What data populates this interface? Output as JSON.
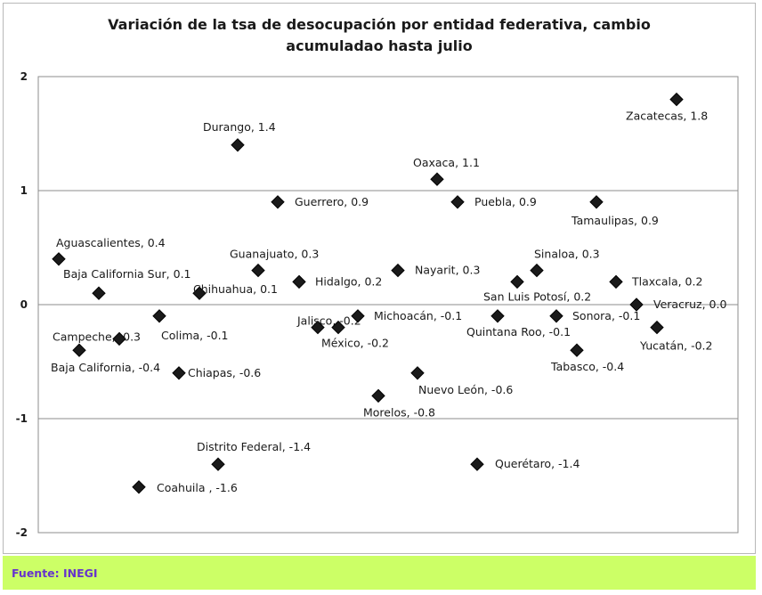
{
  "chart_data": {
    "type": "scatter",
    "title": "Variación de la tsa de desocupación por  entidad federativa, cambio acumuladao hasta julio",
    "title_lines": [
      "Variación de la tsa de desocupación por  entidad federativa, cambio",
      "acumuladao hasta julio"
    ],
    "ylim": [
      -2,
      2
    ],
    "yticks": [
      "2",
      "1",
      "0",
      "-1",
      "-2"
    ],
    "grid": "horizontal",
    "marker": "diamond",
    "marker_color": "#1a1a1a",
    "points": [
      {
        "label": "Aguascalientes, 0.4",
        "y": 0.4
      },
      {
        "label": "Baja California Sur, 0.1",
        "y": 0.1
      },
      {
        "label": "Campeche, -0.3",
        "y": -0.3
      },
      {
        "label": "Baja California, -0.4",
        "y": -0.4
      },
      {
        "label": "Coahuila , -1.6",
        "y": -1.6
      },
      {
        "label": "Colima, -0.1",
        "y": -0.1
      },
      {
        "label": "Chiapas, -0.6",
        "y": -0.6
      },
      {
        "label": "Chihuahua, 0.1",
        "y": 0.1
      },
      {
        "label": "Distrito Federal, -1.4",
        "y": -1.4
      },
      {
        "label": "Durango, 1.4",
        "y": 1.4
      },
      {
        "label": "Guanajuato, 0.3",
        "y": 0.3
      },
      {
        "label": "Guerrero, 0.9",
        "y": 0.9
      },
      {
        "label": "Hidalgo, 0.2",
        "y": 0.2
      },
      {
        "label": "Jalisco, -0.2",
        "y": -0.2
      },
      {
        "label": "México, -0.2",
        "y": -0.2
      },
      {
        "label": "Michoacán, -0.1",
        "y": -0.1
      },
      {
        "label": "Morelos, -0.8",
        "y": -0.8
      },
      {
        "label": "Nayarit, 0.3",
        "y": 0.3
      },
      {
        "label": "Nuevo León, -0.6",
        "y": -0.6
      },
      {
        "label": "Oaxaca, 1.1",
        "y": 1.1
      },
      {
        "label": "Puebla, 0.9",
        "y": 0.9
      },
      {
        "label": "Querétaro, -1.4",
        "y": -1.4
      },
      {
        "label": "Quintana Roo, -0.1",
        "y": -0.1
      },
      {
        "label": "San Luis Potosí, 0.2",
        "y": 0.2
      },
      {
        "label": "Sinaloa, 0.3",
        "y": 0.3
      },
      {
        "label": "Sonora, -0.1",
        "y": -0.1
      },
      {
        "label": "Tabasco, -0.4",
        "y": -0.4
      },
      {
        "label": "Tamaulipas, 0.9",
        "y": 0.9
      },
      {
        "label": "Tlaxcala, 0.2",
        "y": 0.2
      },
      {
        "label": "Veracruz, 0.0",
        "y": 0.0
      },
      {
        "label": "Yucatán, -0.2",
        "y": -0.2
      },
      {
        "label": "Zacatecas, 1.8",
        "y": 1.8
      }
    ]
  },
  "footer": {
    "text": "Fuente:  INEGI",
    "background": "#ccff66",
    "text_color": "#6633cc"
  }
}
